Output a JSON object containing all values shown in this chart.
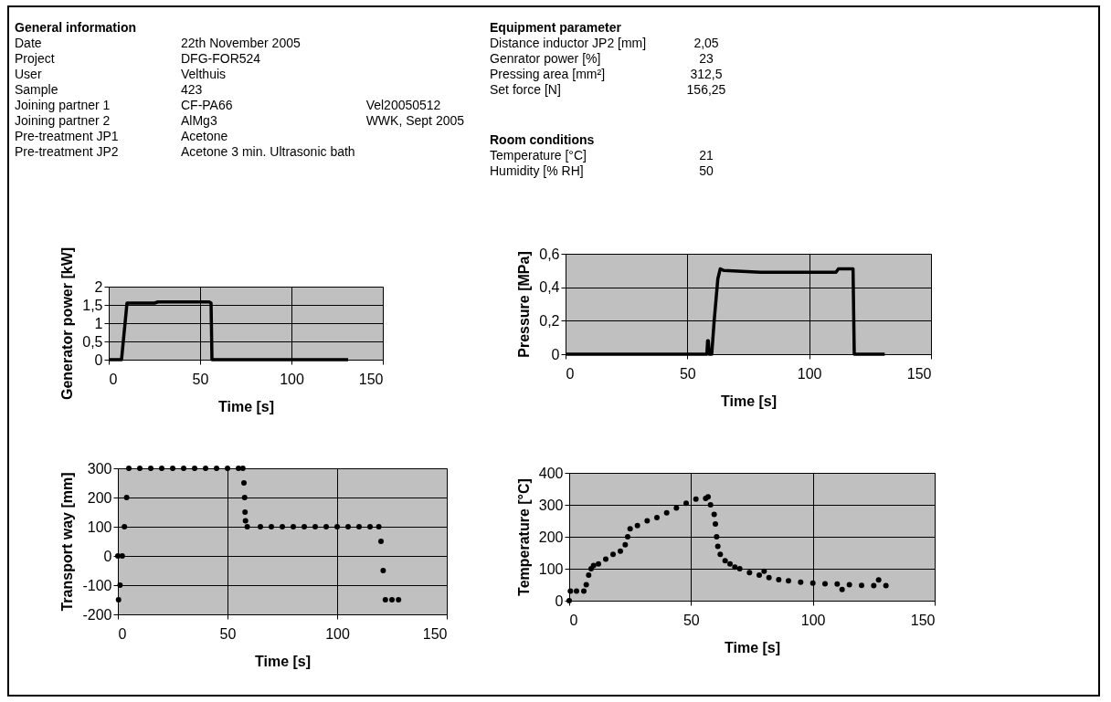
{
  "chart_data": [
    {
      "type": "other",
      "title": "General information",
      "annotations": [
        "Date\t22th November 2005",
        "Project\tDFG-FOR524",
        "User\tVelthuis",
        "Sample\t423",
        "Joining partner 1\tCF-PA66\tVel20050512",
        "Joining partner 2\tAlMg3\tWWK, Sept 2005",
        "Pre-treatment JP1\tAcetone",
        "Pre-treatment JP2\tAcetone 3 min. Ultrasonic bath"
      ]
    },
    {
      "type": "other",
      "title": "Equipment parameter",
      "annotations": [
        "Distance inductor JP2 [mm]\t2,05",
        "Genrator power [%]\t23",
        "Pressing area [mm²]\t312,5",
        "Set force [N]\t156,25"
      ]
    },
    {
      "type": "other",
      "title": "Room conditions",
      "annotations": [
        "Temperature [°C]\t21",
        "Humidity [% RH]\t50"
      ]
    },
    {
      "type": "line",
      "xlabel": "Time [s]",
      "ylabel": "Generator power [kW]",
      "xlim": [
        0,
        150
      ],
      "xticks": [
        0,
        50,
        100,
        150
      ],
      "ylim": [
        0,
        2
      ],
      "yticks": [
        0,
        {
          "value": 0.5,
          "label": "0,5"
        },
        1,
        {
          "value": 1.5,
          "label": "1,5"
        },
        2
      ],
      "grid": true,
      "marker": "none",
      "series": [
        {
          "color": "#000000",
          "x": [
            0,
            7,
            10,
            25,
            27,
            55,
            56,
            56.5,
            131
          ],
          "values": [
            0,
            0,
            1.55,
            1.55,
            1.58,
            1.58,
            1.55,
            0,
            0
          ]
        }
      ]
    },
    {
      "type": "line",
      "xlabel": "Time [s]",
      "ylabel": "Pressure [MPa]",
      "xlim": [
        0,
        150
      ],
      "xticks": [
        0,
        50,
        100,
        150
      ],
      "ylim": [
        0,
        0.6
      ],
      "yticks": [
        0,
        {
          "value": 0.2,
          "label": "0,2"
        },
        {
          "value": 0.4,
          "label": "0,4"
        },
        {
          "value": 0.6,
          "label": "0,6"
        }
      ],
      "grid": true,
      "marker": "none",
      "series": [
        {
          "color": "#000000",
          "x": [
            0,
            58,
            58.3,
            58.6,
            59,
            60,
            61,
            62.5,
            63.5,
            65,
            80,
            100,
            111,
            112,
            118,
            118.5,
            131
          ],
          "values": [
            0,
            0,
            0.08,
            0.08,
            0,
            0,
            0.2,
            0.45,
            0.51,
            0.5,
            0.49,
            0.49,
            0.49,
            0.51,
            0.51,
            0,
            0
          ]
        }
      ]
    },
    {
      "type": "scatter",
      "xlabel": "Time [s]",
      "ylabel": "Transport way [mm]",
      "xlim": [
        0,
        150
      ],
      "xticks": [
        0,
        50,
        100,
        150
      ],
      "ylim": [
        -200,
        300
      ],
      "yticks": [
        -200,
        -100,
        0,
        100,
        200,
        300
      ],
      "grid": true,
      "marker": "circle",
      "series": [
        {
          "color": "#000000",
          "x": [
            0,
            0.3,
            1,
            2,
            3,
            4,
            5,
            10,
            15,
            20,
            25,
            30,
            35,
            40,
            45,
            50,
            55,
            57,
            57.5,
            57.8,
            58,
            58.2,
            59,
            65,
            70,
            75,
            80,
            85,
            90,
            95,
            100,
            105,
            110,
            115,
            119,
            120,
            121,
            122,
            125,
            128
          ],
          "values": [
            0,
            -150,
            -100,
            0,
            100,
            200,
            300,
            300,
            300,
            300,
            300,
            300,
            300,
            300,
            300,
            300,
            300,
            300,
            250,
            200,
            150,
            120,
            100,
            100,
            100,
            100,
            100,
            100,
            100,
            100,
            100,
            100,
            100,
            100,
            100,
            50,
            -50,
            -150,
            -150,
            -150
          ]
        }
      ]
    },
    {
      "type": "scatter",
      "xlabel": "Time [s]",
      "ylabel": "Temperature [°C]",
      "xlim": [
        0,
        150
      ],
      "xticks": [
        0,
        50,
        100,
        150
      ],
      "ylim": [
        0,
        400
      ],
      "yticks": [
        0,
        100,
        200,
        300,
        400
      ],
      "grid": true,
      "marker": "circle",
      "series": [
        {
          "color": "#000000",
          "x": [
            0,
            0.5,
            3,
            6,
            7,
            8,
            9,
            10,
            12,
            15,
            18,
            21,
            23,
            24,
            25,
            28,
            32,
            36,
            40,
            44,
            48,
            52,
            56,
            57,
            58,
            59.5,
            60,
            60.5,
            61,
            62,
            64,
            66,
            68,
            70,
            74,
            78,
            80,
            82,
            86,
            90,
            95,
            100,
            105,
            110,
            112,
            115,
            120,
            125,
            127,
            130
          ],
          "values": [
            0,
            30,
            30,
            30,
            50,
            80,
            100,
            110,
            115,
            130,
            145,
            155,
            175,
            200,
            225,
            235,
            250,
            260,
            275,
            290,
            305,
            318,
            320,
            325,
            300,
            270,
            240,
            200,
            170,
            145,
            125,
            115,
            105,
            100,
            88,
            80,
            92,
            72,
            66,
            62,
            58,
            55,
            53,
            52,
            35,
            50,
            48,
            47,
            65,
            47
          ]
        }
      ]
    }
  ]
}
